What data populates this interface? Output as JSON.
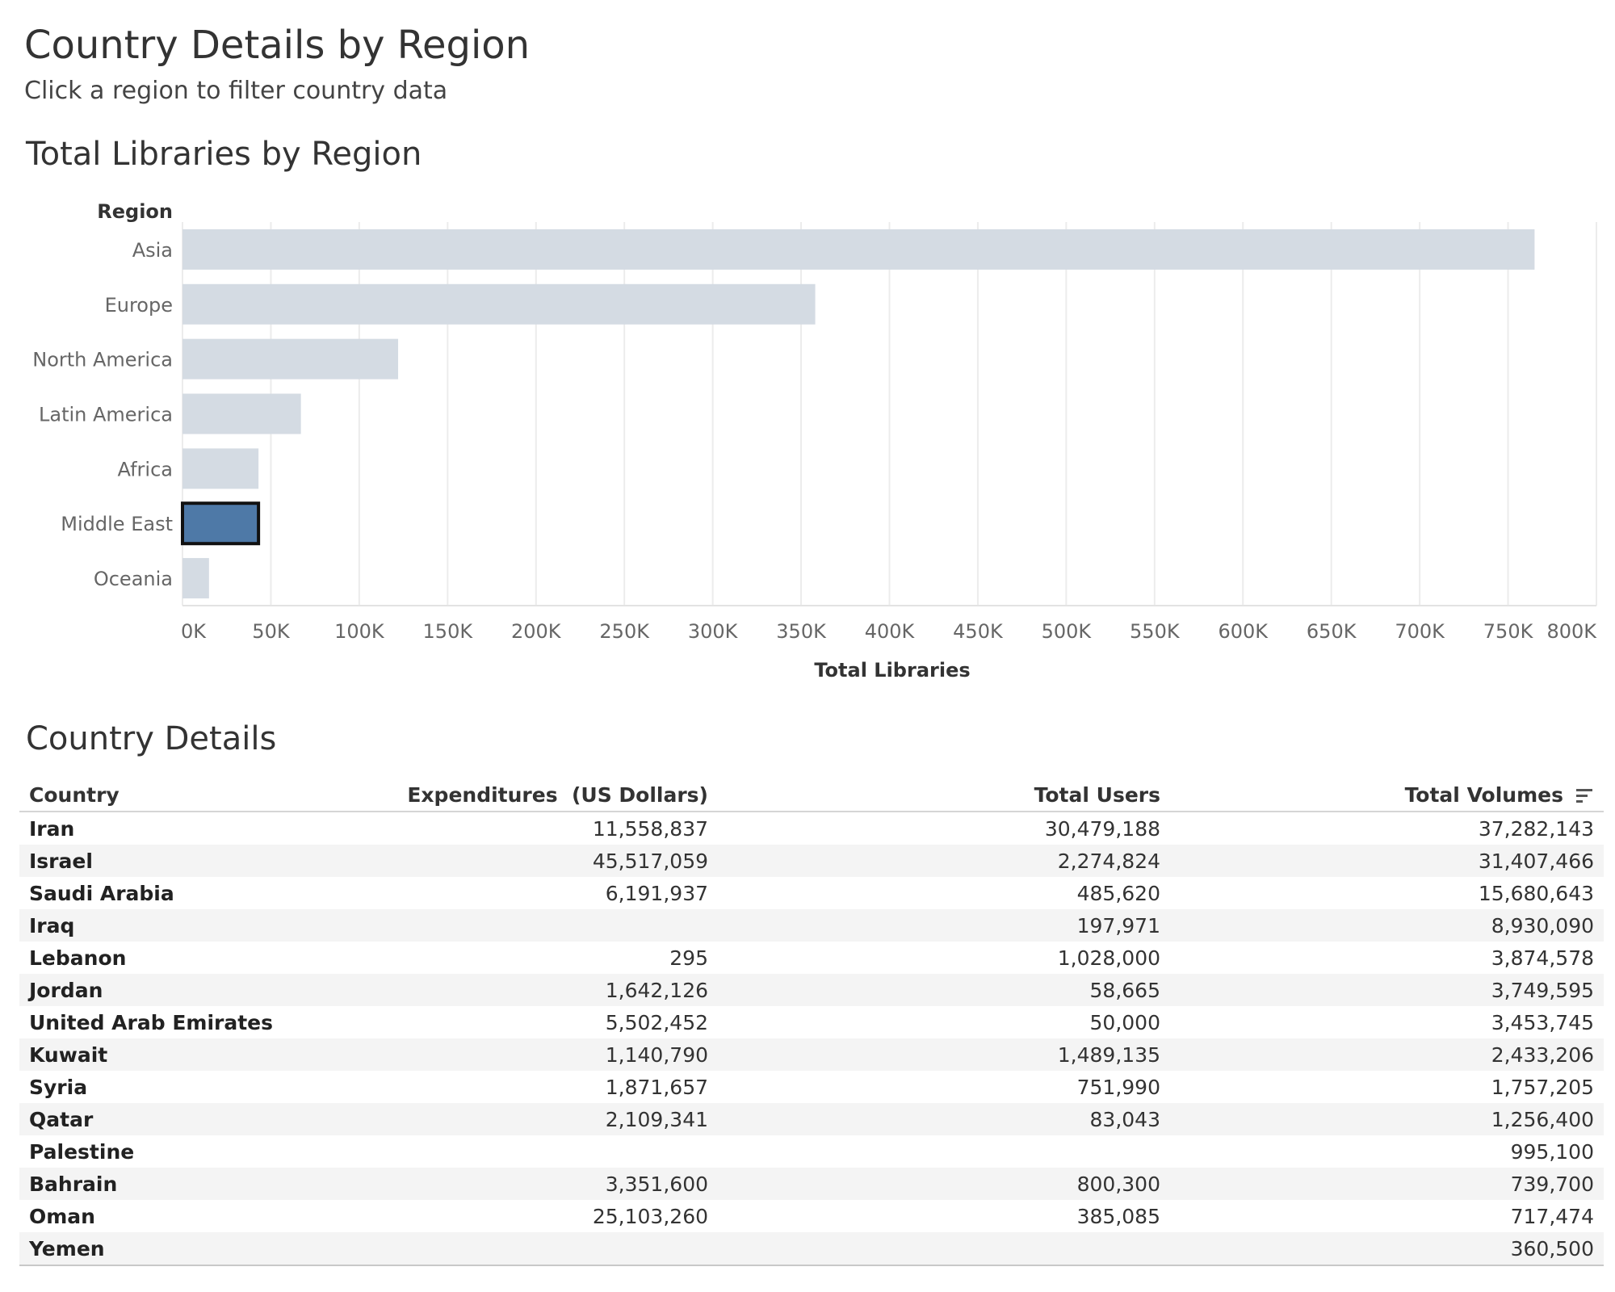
{
  "page": {
    "title": "Country Details by Region",
    "subtitle": "Click a region to filter country data"
  },
  "chart_title": "Total Libraries by Region",
  "chart_data": {
    "type": "bar",
    "orientation": "horizontal",
    "title": "Total Libraries by Region",
    "ylabel": "Region",
    "xlabel": "Total Libraries",
    "categories": [
      "Asia",
      "Europe",
      "North America",
      "Latin America",
      "Africa",
      "Middle East",
      "Oceania"
    ],
    "values": [
      765000,
      358000,
      122000,
      67000,
      43000,
      43000,
      15000
    ],
    "selected": "Middle East",
    "xlim": [
      0,
      800000
    ],
    "ticks": [
      0,
      50000,
      100000,
      150000,
      200000,
      250000,
      300000,
      350000,
      400000,
      450000,
      500000,
      550000,
      600000,
      650000,
      700000,
      750000,
      800000
    ],
    "tick_labels": [
      "0K",
      "50K",
      "100K",
      "150K",
      "200K",
      "250K",
      "300K",
      "350K",
      "400K",
      "450K",
      "500K",
      "550K",
      "600K",
      "650K",
      "700K",
      "750K",
      "800K"
    ],
    "grid": true,
    "colors": {
      "bar": "#d4dbe3",
      "selected_bar": "#4e79a7",
      "selected_outline": "#111111",
      "gridline": "#ececec"
    }
  },
  "table": {
    "title": "Country Details",
    "columns": [
      "Country",
      "Expenditures  (US Dollars)",
      "Total Users",
      "Total Volumes"
    ],
    "sort_icon": "sort-descending-icon",
    "rows": [
      {
        "country": "Iran",
        "expenditures": "11,558,837",
        "users": "30,479,188",
        "volumes": "37,282,143"
      },
      {
        "country": "Israel",
        "expenditures": "45,517,059",
        "users": "2,274,824",
        "volumes": "31,407,466"
      },
      {
        "country": "Saudi Arabia",
        "expenditures": "6,191,937",
        "users": "485,620",
        "volumes": "15,680,643"
      },
      {
        "country": "Iraq",
        "expenditures": "",
        "users": "197,971",
        "volumes": "8,930,090"
      },
      {
        "country": "Lebanon",
        "expenditures": "295",
        "users": "1,028,000",
        "volumes": "3,874,578"
      },
      {
        "country": "Jordan",
        "expenditures": "1,642,126",
        "users": "58,665",
        "volumes": "3,749,595"
      },
      {
        "country": "United Arab Emirates",
        "expenditures": "5,502,452",
        "users": "50,000",
        "volumes": "3,453,745"
      },
      {
        "country": "Kuwait",
        "expenditures": "1,140,790",
        "users": "1,489,135",
        "volumes": "2,433,206"
      },
      {
        "country": "Syria",
        "expenditures": "1,871,657",
        "users": "751,990",
        "volumes": "1,757,205"
      },
      {
        "country": "Qatar",
        "expenditures": "2,109,341",
        "users": "83,043",
        "volumes": "1,256,400"
      },
      {
        "country": "Palestine",
        "expenditures": "",
        "users": "",
        "volumes": "995,100"
      },
      {
        "country": "Bahrain",
        "expenditures": "3,351,600",
        "users": "800,300",
        "volumes": "739,700"
      },
      {
        "country": "Oman",
        "expenditures": "25,103,260",
        "users": "385,085",
        "volumes": "717,474"
      },
      {
        "country": "Yemen",
        "expenditures": "",
        "users": "",
        "volumes": "360,500"
      }
    ]
  }
}
